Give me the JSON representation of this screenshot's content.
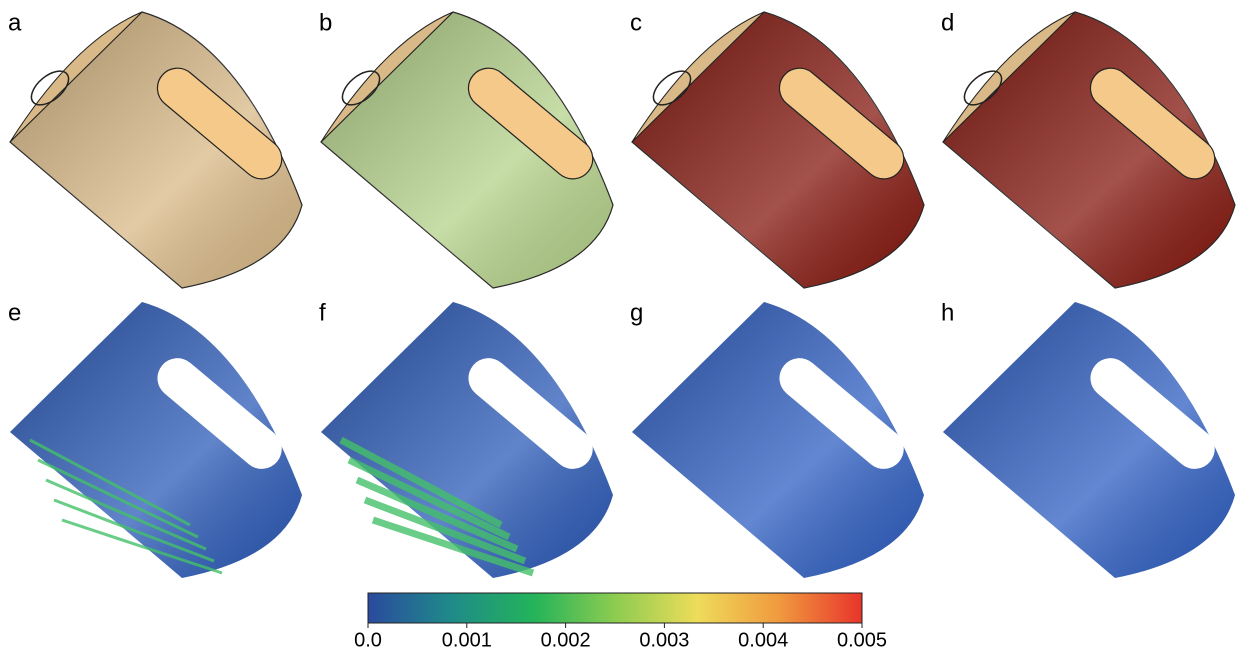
{
  "panels": [
    {
      "label": "a",
      "color": "#d9b987"
    },
    {
      "label": "b",
      "color": "#b5d28a"
    },
    {
      "label": "c",
      "color": "#85180f"
    },
    {
      "label": "d",
      "color": "#85180f"
    },
    {
      "label": "e",
      "color": "#2c5bb8"
    },
    {
      "label": "f",
      "color": "#2c5bb8"
    },
    {
      "label": "g",
      "color": "#2f5fc2"
    },
    {
      "label": "h",
      "color": "#2f5fc2"
    }
  ],
  "colorbar": {
    "lim": [
      0,
      0.005
    ],
    "ticks": [
      {
        "value": 0,
        "label": "0.0"
      },
      0.001,
      0.002,
      0.003,
      0.004,
      0.005
    ],
    "colors": [
      "#2a4a9e",
      "#1f8a8a",
      "#23b35a",
      "#8ccc50",
      "#eedc5a",
      "#f0993e",
      "#e8342c"
    ]
  }
}
